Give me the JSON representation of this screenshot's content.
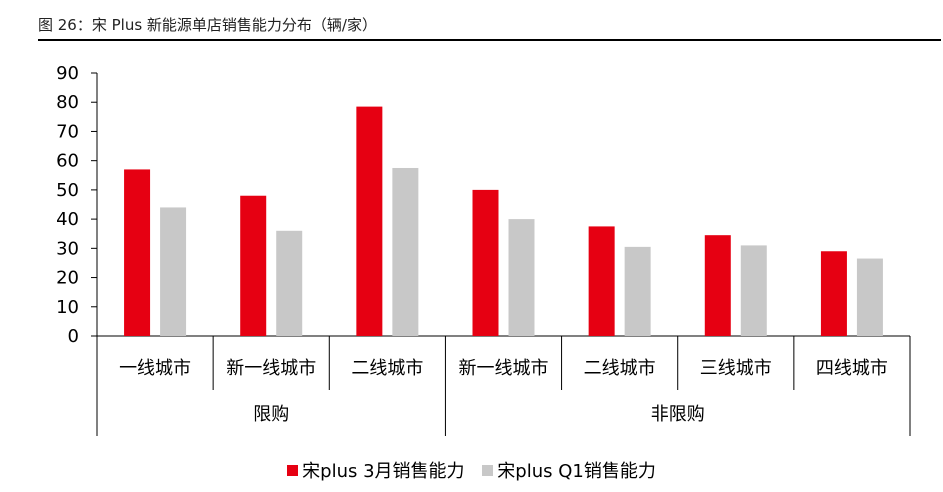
{
  "figure_title": "图 26：宋 Plus 新能源单店销售能力分布（辆/家）",
  "chart_data": {
    "type": "bar",
    "categories": [
      "一线城市",
      "新一线城市",
      "二线城市",
      "新一线城市",
      "二线城市",
      "三线城市",
      "四线城市"
    ],
    "groups": [
      {
        "label": "限购",
        "categories": [
          "一线城市",
          "新一线城市",
          "二线城市"
        ]
      },
      {
        "label": "非限购",
        "categories": [
          "新一线城市",
          "二线城市",
          "三线城市",
          "四线城市"
        ]
      }
    ],
    "series": [
      {
        "name": "宋plus 3月销售能力",
        "color": "#e60012",
        "values": [
          57,
          48,
          78.5,
          50,
          37.5,
          34.5,
          29
        ]
      },
      {
        "name": "宋plus Q1销售能力",
        "color": "#c8c8c8",
        "values": [
          44,
          36,
          57.5,
          40,
          30.5,
          31,
          26.5
        ]
      }
    ],
    "ylim": [
      0,
      90
    ],
    "yticks": [
      0,
      10,
      20,
      30,
      40,
      50,
      60,
      70,
      80,
      90
    ],
    "grid": false,
    "legend_position": "bottom"
  }
}
